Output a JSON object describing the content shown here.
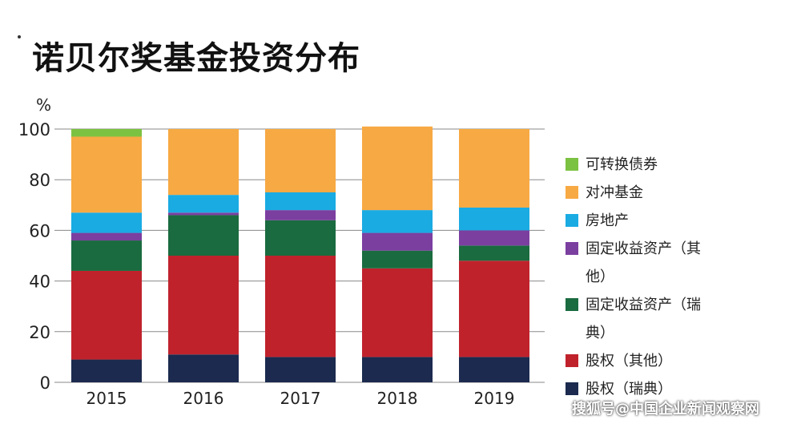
{
  "title": "诺贝尔奖基金投资分布",
  "watermark": "搜狐号@中国企业新闻观察网",
  "chart_data": {
    "type": "bar",
    "stacked": true,
    "title": "诺贝尔奖基金投资分布",
    "ylabel": "%",
    "ylim": [
      0,
      100
    ],
    "yticks": [
      0,
      20,
      40,
      60,
      80,
      100
    ],
    "categories": [
      "2015",
      "2016",
      "2017",
      "2018",
      "2019"
    ],
    "series": [
      {
        "name": "股权（瑞典）",
        "color": "#1b2a4e",
        "values": [
          9,
          11,
          10,
          10,
          10
        ]
      },
      {
        "name": "股权（其他）",
        "color": "#c0222c",
        "values": [
          35,
          39,
          40,
          35,
          38
        ]
      },
      {
        "name": "固定收益资产（瑞典）",
        "color": "#1a6b3f",
        "values": [
          12,
          16,
          14,
          7,
          6
        ]
      },
      {
        "name": "固定收益资产（其他）",
        "color": "#7b3fa0",
        "values": [
          3,
          1,
          4,
          7,
          6
        ]
      },
      {
        "name": "房地产",
        "color": "#1aabe3",
        "values": [
          8,
          7,
          7,
          9,
          9
        ]
      },
      {
        "name": "对冲基金",
        "color": "#f7a943",
        "values": [
          30,
          26,
          25,
          33,
          31
        ]
      },
      {
        "name": "可转换债券",
        "color": "#7cc242",
        "values": [
          3,
          0,
          0,
          0,
          0
        ]
      }
    ],
    "legend": [
      "可转换债券",
      "对冲基金",
      "房地产",
      "固定收益资产（其他）",
      "固定收益资产（瑞典）",
      "股权（其他）",
      "股权（瑞典）"
    ],
    "legend_position": "right"
  }
}
